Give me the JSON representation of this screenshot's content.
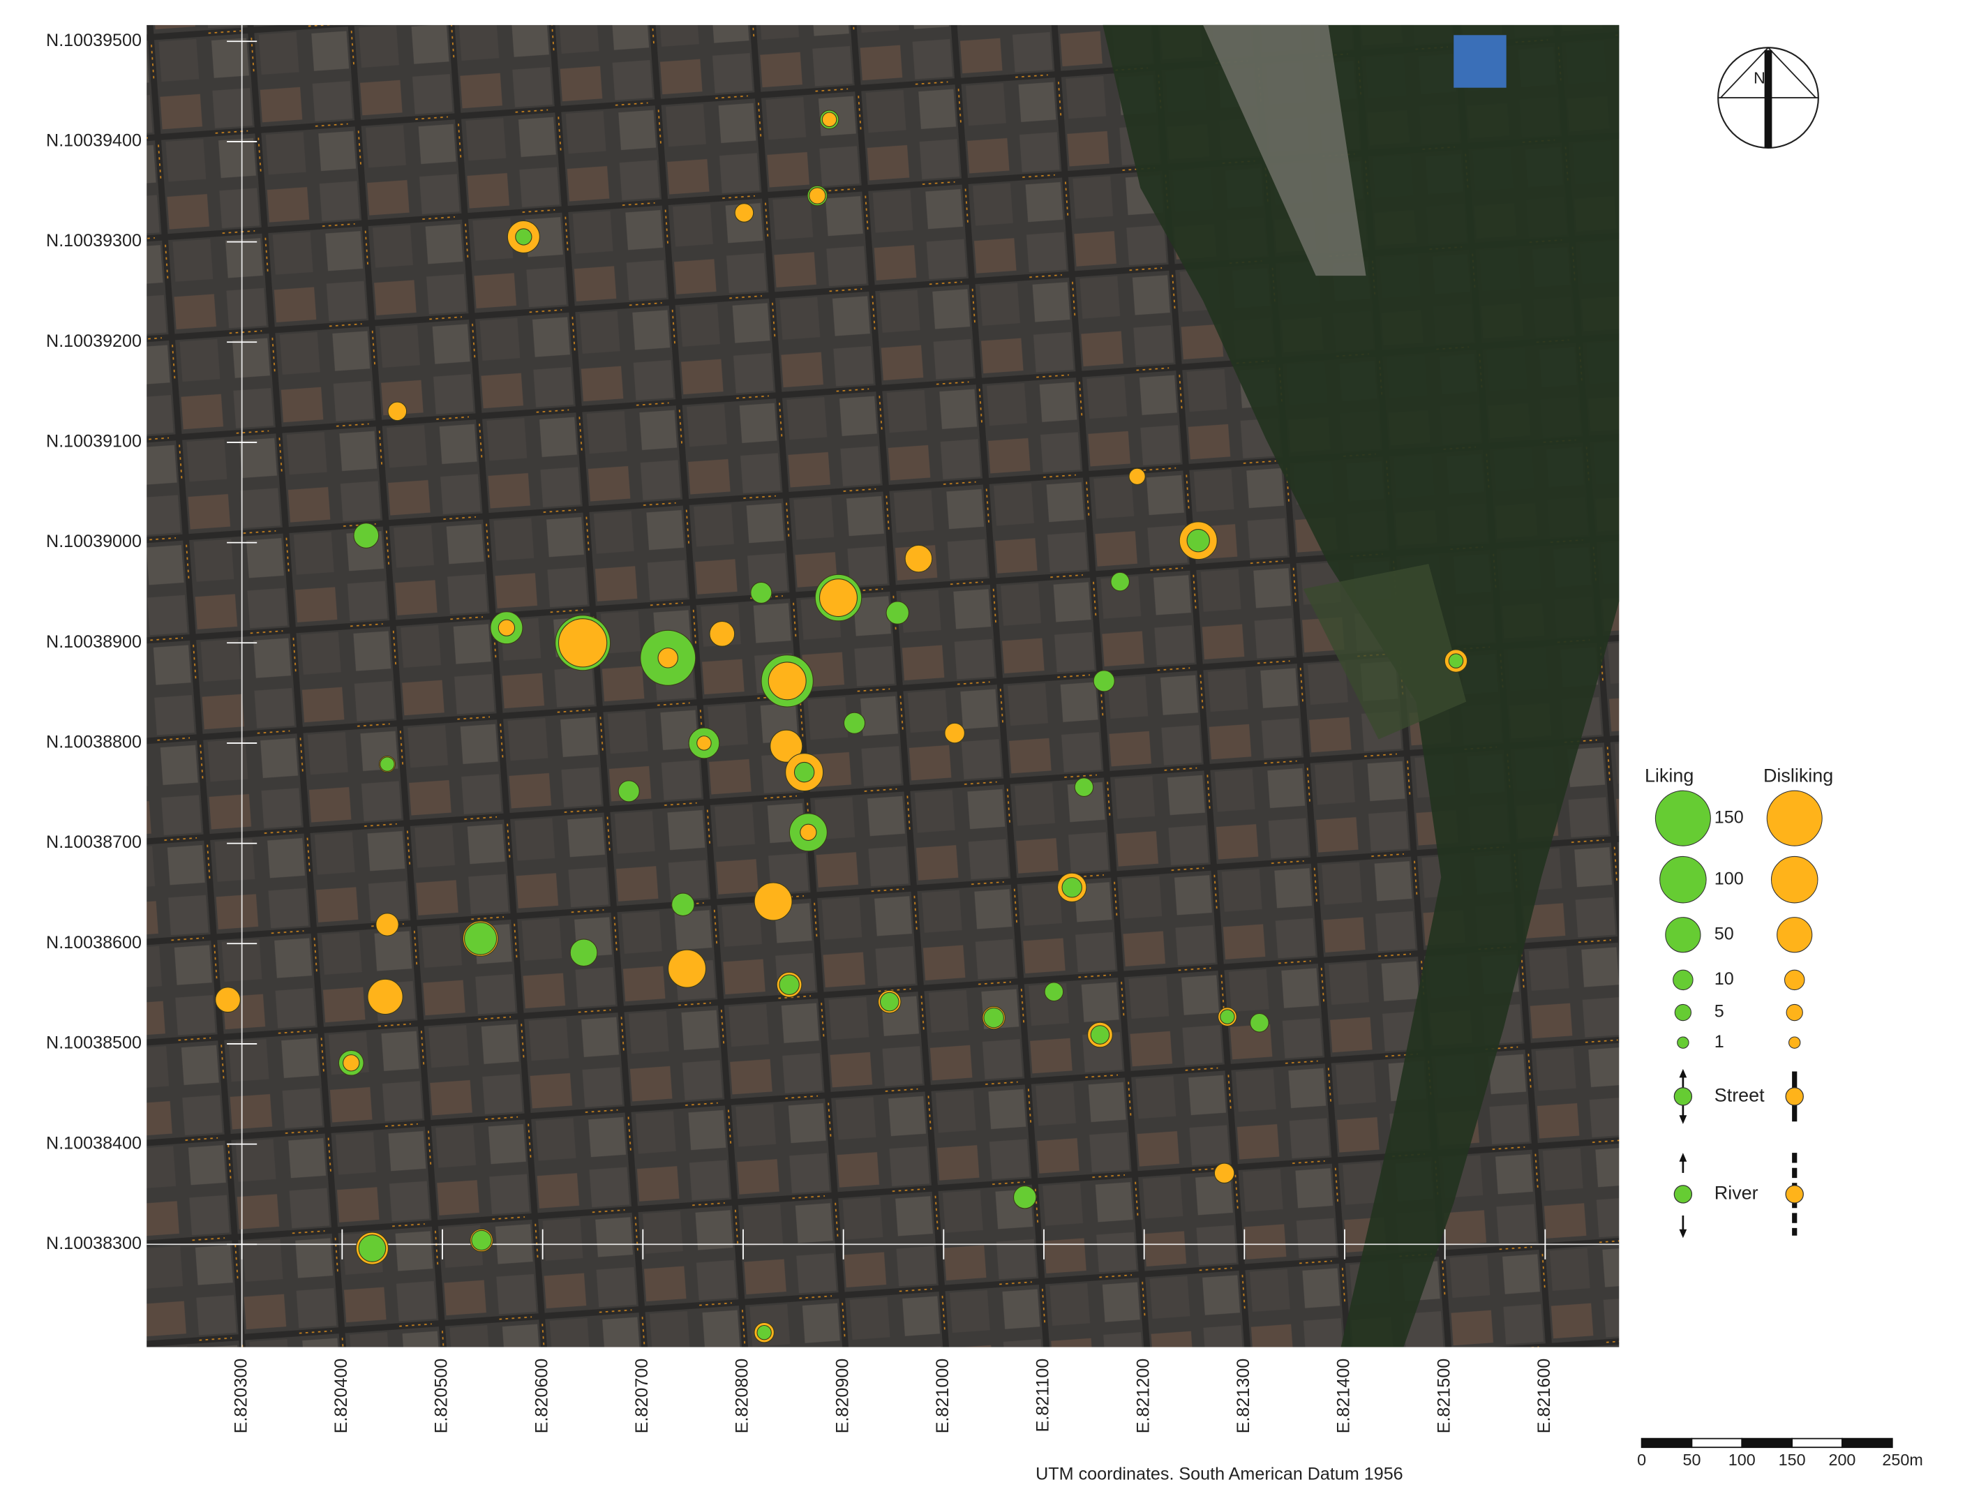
{
  "map": {
    "northings": [
      {
        "value": 10039500,
        "label": "N.10039500"
      },
      {
        "value": 10039400,
        "label": "N.10039400"
      },
      {
        "value": 10039300,
        "label": "N.10039300"
      },
      {
        "value": 10039200,
        "label": "N.10039200"
      },
      {
        "value": 10039100,
        "label": "N.10039100"
      },
      {
        "value": 10039000,
        "label": "N.10039000"
      },
      {
        "value": 10038900,
        "label": "N.10038900"
      },
      {
        "value": 10038800,
        "label": "N.10038800"
      },
      {
        "value": 10038700,
        "label": "N.10038700"
      },
      {
        "value": 10038600,
        "label": "N.10038600"
      },
      {
        "value": 10038500,
        "label": "N.10038500"
      },
      {
        "value": 10038400,
        "label": "N.10038400"
      },
      {
        "value": 10038300,
        "label": "N.10038300"
      }
    ],
    "eastings": [
      {
        "value": 820300,
        "label": "E.820300"
      },
      {
        "value": 820400,
        "label": "E.820400"
      },
      {
        "value": 820500,
        "label": "E.820500"
      },
      {
        "value": 820600,
        "label": "E.820600"
      },
      {
        "value": 820700,
        "label": "E.820700"
      },
      {
        "value": 820800,
        "label": "E.820800"
      },
      {
        "value": 820900,
        "label": "E.820900"
      },
      {
        "value": 821000,
        "label": "E.821000"
      },
      {
        "value": 821100,
        "label": "E.821100"
      },
      {
        "value": 821200,
        "label": "E.821200"
      },
      {
        "value": 821300,
        "label": "E.821300"
      },
      {
        "value": 821400,
        "label": "E.821400"
      },
      {
        "value": 821500,
        "label": "E.821500"
      },
      {
        "value": 821600,
        "label": "E.821600"
      }
    ],
    "points": [
      {
        "e": 820581,
        "n": 10039305,
        "liking": 5,
        "disliking": 40
      },
      {
        "e": 820874,
        "n": 10039346,
        "liking": 10,
        "disliking": 5
      },
      {
        "e": 820886,
        "n": 10039422,
        "liking": 8,
        "disliking": 3
      },
      {
        "e": 820801,
        "n": 10039329,
        "liking": 0,
        "disliking": 8
      },
      {
        "e": 820424,
        "n": 10039007,
        "liking": 20,
        "disliking": 0
      },
      {
        "e": 820564,
        "n": 10038915,
        "liking": 40,
        "disliking": 5
      },
      {
        "e": 820640,
        "n": 10038900,
        "liking": 150,
        "disliking": 110
      },
      {
        "e": 820725,
        "n": 10038885,
        "liking": 150,
        "disliking": 10
      },
      {
        "e": 820779,
        "n": 10038909,
        "liking": 20,
        "disliking": 20
      },
      {
        "e": 820844,
        "n": 10038862,
        "liking": 130,
        "disliking": 60
      },
      {
        "e": 820895,
        "n": 10038945,
        "liking": 100,
        "disliking": 60
      },
      {
        "e": 820761,
        "n": 10038800,
        "liking": 35,
        "disliking": 3
      },
      {
        "e": 820843,
        "n": 10038797,
        "liking": 40,
        "disliking": 40
      },
      {
        "e": 820861,
        "n": 10038771,
        "liking": 10,
        "disliking": 60
      },
      {
        "e": 820865,
        "n": 10038711,
        "liking": 60,
        "disliking": 5
      },
      {
        "e": 820830,
        "n": 10038642,
        "liking": 0,
        "disliking": 60
      },
      {
        "e": 820744,
        "n": 10038575,
        "liking": 60,
        "disliking": 60
      },
      {
        "e": 820641,
        "n": 10038591,
        "liking": 25,
        "disliking": 0
      },
      {
        "e": 820538,
        "n": 10038605,
        "liking": 40,
        "disliking": 50
      },
      {
        "e": 820443,
        "n": 10038547,
        "liking": 0,
        "disliking": 50
      },
      {
        "e": 820286,
        "n": 10038544,
        "liking": 0,
        "disliking": 20
      },
      {
        "e": 820409,
        "n": 10038481,
        "liking": 20,
        "disliking": 5
      },
      {
        "e": 820430,
        "n": 10038296,
        "liking": 25,
        "disliking": 40
      },
      {
        "e": 820539,
        "n": 10038304,
        "liking": 10,
        "disliking": 15
      },
      {
        "e": 820846,
        "n": 10038559,
        "liking": 10,
        "disliking": 20
      },
      {
        "e": 821254,
        "n": 10039002,
        "liking": 15,
        "disliking": 60
      },
      {
        "e": 820975,
        "n": 10038984,
        "liking": 0,
        "disliking": 25
      },
      {
        "e": 820954,
        "n": 10038930,
        "liking": 15,
        "disliking": 0
      },
      {
        "e": 821128,
        "n": 10038656,
        "liking": 10,
        "disliking": 30
      },
      {
        "e": 821511,
        "n": 10038882,
        "liking": 3,
        "disliking": 15
      },
      {
        "e": 820911,
        "n": 10038820,
        "liking": 12,
        "disliking": 0
      },
      {
        "e": 820740,
        "n": 10038639,
        "liking": 15,
        "disliking": 0
      },
      {
        "e": 820686,
        "n": 10038752,
        "liking": 12,
        "disliking": 0
      },
      {
        "e": 820818,
        "n": 10038950,
        "liking": 12,
        "disliking": 0
      },
      {
        "e": 821160,
        "n": 10038862,
        "liking": 12,
        "disliking": 0
      },
      {
        "e": 820946,
        "n": 10038542,
        "liking": 8,
        "disliking": 15
      },
      {
        "e": 821050,
        "n": 10038526,
        "liking": 10,
        "disliking": 15
      },
      {
        "e": 821156,
        "n": 10038509,
        "liking": 8,
        "disliking": 20
      },
      {
        "e": 821081,
        "n": 10038347,
        "liking": 15,
        "disliking": 0
      },
      {
        "e": 820445,
        "n": 10038619,
        "liking": 0,
        "disliking": 15
      },
      {
        "e": 821280,
        "n": 10038371,
        "liking": 0,
        "disliking": 10
      },
      {
        "e": 820455,
        "n": 10039131,
        "liking": 0,
        "disliking": 8
      },
      {
        "e": 821193,
        "n": 10039066,
        "liking": 0,
        "disliking": 5
      },
      {
        "e": 821011,
        "n": 10038810,
        "liking": 0,
        "disliking": 10
      },
      {
        "e": 820445,
        "n": 10038779,
        "liking": 3,
        "disliking": 5
      },
      {
        "e": 821283,
        "n": 10038527,
        "liking": 3,
        "disliking": 8
      },
      {
        "e": 821315,
        "n": 10038521,
        "liking": 8,
        "disliking": 0
      },
      {
        "e": 821176,
        "n": 10038961,
        "liking": 8,
        "disliking": 0
      },
      {
        "e": 821110,
        "n": 10038552,
        "liking": 8,
        "disliking": 0
      },
      {
        "e": 821140,
        "n": 10038756,
        "liking": 8,
        "disliking": 0
      },
      {
        "e": 820821,
        "n": 10038212,
        "liking": 3,
        "disliking": 10
      }
    ],
    "liking_color": "#66cc33",
    "disliking_color": "#ffb31a",
    "legend": {
      "liking_title": "Liking",
      "disliking_title": "Disliking",
      "sizes": [
        150,
        100,
        50,
        10,
        5,
        1
      ],
      "street": "Street",
      "river": "River"
    },
    "scale_bar": [
      0,
      50,
      100,
      150,
      200,
      {
        "value": 250,
        "label": "250m"
      }
    ],
    "caption": "UTM coordinates. South American Datum 1956",
    "north": "N"
  }
}
